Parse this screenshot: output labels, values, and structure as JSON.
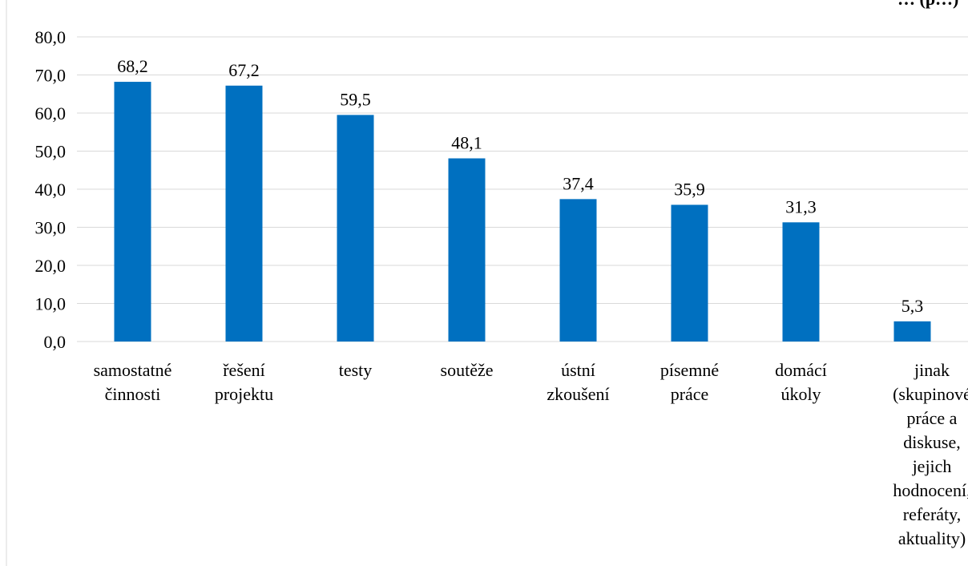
{
  "chart_data": {
    "type": "bar",
    "title": "… (p…)",
    "categories": [
      [
        "samostatné",
        "činnosti"
      ],
      [
        "řešení",
        "projektu"
      ],
      [
        "testy"
      ],
      [
        "soutěže"
      ],
      [
        "ústní",
        "zkoušení"
      ],
      [
        "písemné",
        "práce"
      ],
      [
        "domácí",
        "úkoly"
      ],
      [
        "jinak",
        "(skupinové",
        "práce a",
        "diskuse,",
        "jejich",
        "hodnocení,",
        "referáty,",
        "aktuality)"
      ]
    ],
    "values": [
      68.2,
      67.2,
      59.5,
      48.1,
      37.4,
      35.9,
      31.3,
      5.3
    ],
    "value_labels": [
      "68,2",
      "67,2",
      "59,5",
      "48,1",
      "37,4",
      "35,9",
      "31,3",
      "5,3"
    ],
    "ylim": [
      0,
      80
    ],
    "yticks": [
      "0,0",
      "10,0",
      "20,0",
      "30,0",
      "40,0",
      "50,0",
      "60,0",
      "70,0",
      "80,0"
    ],
    "xlabel": "",
    "ylabel": "",
    "grid": true,
    "legend": "none",
    "bar_color": "#0070c0"
  }
}
